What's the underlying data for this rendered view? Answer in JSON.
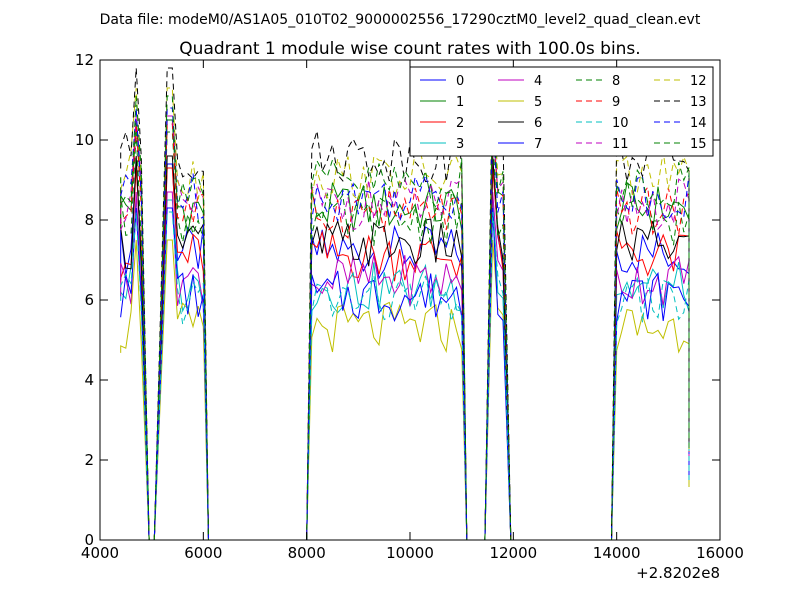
{
  "chart_data": {
    "type": "line",
    "suptitle": "Data file: modeM0/AS1A05_010T02_9000002556_17290cztM0_level2_quad_clean.evt",
    "title": "Quadrant 1 module wise count rates with 100.0s bins.",
    "xlabel": "",
    "ylabel": "",
    "x_offset_label": "+2.8202e8",
    "xlim": [
      4000,
      16000
    ],
    "ylim": [
      0,
      12
    ],
    "x_ticks": [
      4000,
      6000,
      8000,
      10000,
      12000,
      14000,
      16000
    ],
    "y_ticks": [
      0,
      2,
      4,
      6,
      8,
      10,
      12
    ],
    "x_tick_labels": [
      "4000",
      "6000",
      "8000",
      "10000",
      "12000",
      "14000",
      "16000"
    ],
    "y_tick_labels": [
      "0",
      "2",
      "4",
      "6",
      "8",
      "10",
      "12"
    ],
    "grid": false,
    "legend_position": "top-right",
    "legend_columns": 4,
    "segments": [
      [
        4400,
        4800
      ],
      [
        5300,
        6000
      ],
      [
        8100,
        11000
      ],
      [
        11600,
        11800
      ],
      [
        14000,
        15400
      ]
    ],
    "gaps": [
      [
        4950,
        5050
      ],
      [
        6100,
        8000
      ],
      [
        11100,
        11450
      ],
      [
        11950,
        13900
      ]
    ],
    "spikes": [
      4700,
      5350,
      11600
    ],
    "series": [
      {
        "name": "0",
        "color": "#0000ff",
        "dash": "solid",
        "level": 7.2
      },
      {
        "name": "1",
        "color": "#008000",
        "dash": "solid",
        "level": 8.3
      },
      {
        "name": "2",
        "color": "#ff0000",
        "dash": "solid",
        "level": 7.1
      },
      {
        "name": "3",
        "color": "#00bfbf",
        "dash": "solid",
        "level": 6.3
      },
      {
        "name": "4",
        "color": "#bf00bf",
        "dash": "solid",
        "level": 6.5
      },
      {
        "name": "5",
        "color": "#bfbf00",
        "dash": "solid",
        "level": 5.3
      },
      {
        "name": "6",
        "color": "#000000",
        "dash": "solid",
        "level": 7.4
      },
      {
        "name": "7",
        "color": "#0000ff",
        "dash": "solid",
        "level": 6.1
      },
      {
        "name": "8",
        "color": "#008000",
        "dash": "dashed",
        "level": 8.0
      },
      {
        "name": "9",
        "color": "#ff0000",
        "dash": "dashed",
        "level": 8.2
      },
      {
        "name": "10",
        "color": "#00bfbf",
        "dash": "dashed",
        "level": 6.0
      },
      {
        "name": "11",
        "color": "#bf00bf",
        "dash": "dashed",
        "level": 8.4
      },
      {
        "name": "12",
        "color": "#bfbf00",
        "dash": "dashed",
        "level": 9.1
      },
      {
        "name": "13",
        "color": "#000000",
        "dash": "dashed",
        "level": 9.6
      },
      {
        "name": "14",
        "color": "#0000ff",
        "dash": "dashed",
        "level": 8.6
      },
      {
        "name": "15",
        "color": "#008000",
        "dash": "dashed",
        "level": 8.9
      }
    ]
  }
}
